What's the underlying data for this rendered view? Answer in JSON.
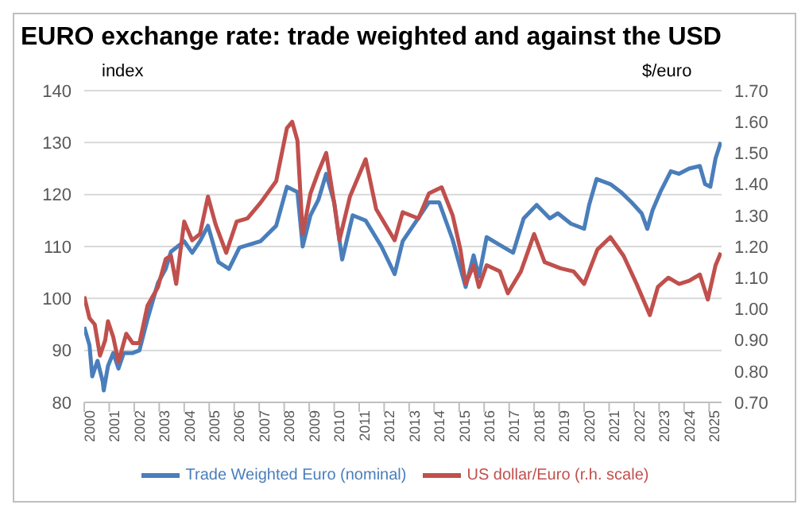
{
  "chart_data": {
    "type": "line",
    "title": "EURO exchange rate: trade weighted and against the USD",
    "ylabel": "index",
    "y2label": "$/euro",
    "xlim": [
      2000,
      2025.5
    ],
    "xticks": [
      2000,
      2001,
      2002,
      2003,
      2004,
      2005,
      2006,
      2007,
      2008,
      2009,
      2010,
      2011,
      2012,
      2013,
      2014,
      2015,
      2016,
      2017,
      2018,
      2019,
      2020,
      2021,
      2022,
      2023,
      2024,
      2025
    ],
    "ylim": [
      80,
      140
    ],
    "yticks": [
      80,
      90,
      100,
      110,
      120,
      130,
      140
    ],
    "y2lim": [
      0.7,
      1.7
    ],
    "y2ticks": [
      {
        "value": 0.7,
        "label": "0.70"
      },
      {
        "value": 0.8,
        "label": "0.80"
      },
      {
        "value": 0.9,
        "label": "0.90"
      },
      {
        "value": 1.0,
        "label": "1.00"
      },
      {
        "value": 1.1,
        "label": "1.10"
      },
      {
        "value": 1.2,
        "label": "1.20"
      },
      {
        "value": 1.3,
        "label": "1.30"
      },
      {
        "value": 1.4,
        "label": "1.40"
      },
      {
        "value": 1.5,
        "label": "1.50"
      },
      {
        "value": 1.6,
        "label": "1.60"
      },
      {
        "value": 1.7,
        "label": "1.70"
      }
    ],
    "grid": "y",
    "legend": "bottom",
    "marker": "none",
    "line_style": "solid",
    "series": [
      {
        "name": "Trade Weighted Euro (nominal)",
        "color": "#4a7ebb",
        "x": [
          2000.0,
          2000.21,
          2000.32,
          2000.53,
          2000.74,
          2000.78,
          2000.95,
          2001.16,
          2001.37,
          2001.58,
          2001.94,
          2002.21,
          2002.53,
          2002.95,
          2003.26,
          2003.47,
          2004.0,
          2004.32,
          2004.63,
          2004.95,
          2005.37,
          2005.79,
          2006.21,
          2007.05,
          2007.68,
          2008.11,
          2008.53,
          2008.74,
          2009.05,
          2009.37,
          2009.68,
          2010.0,
          2010.32,
          2010.74,
          2011.26,
          2011.89,
          2012.42,
          2012.74,
          2013.37,
          2013.79,
          2014.2,
          2014.74,
          2015.26,
          2015.58,
          2015.79,
          2016.1,
          2016.63,
          2017.16,
          2017.58,
          2018.1,
          2018.63,
          2018.95,
          2019.47,
          2020.0,
          2020.2,
          2020.5,
          2021.05,
          2021.47,
          2021.9,
          2022.3,
          2022.53,
          2022.74,
          2023.05,
          2023.47,
          2023.8,
          2024.2,
          2024.63,
          2024.84,
          2025.05,
          2025.26,
          2025.47
        ],
        "values": [
          94.5,
          91,
          85,
          88,
          84,
          82.3,
          87,
          89.5,
          86.5,
          89.5,
          89.5,
          90,
          96,
          103,
          105.7,
          109,
          111,
          108.8,
          111,
          114,
          107,
          105.7,
          109.8,
          111,
          114,
          121.5,
          120.5,
          110,
          116,
          119,
          124,
          118.5,
          107.5,
          116,
          115,
          110,
          104.7,
          111,
          115.5,
          118.5,
          118.5,
          111.3,
          102.2,
          108.3,
          104.2,
          111.8,
          110.3,
          108.8,
          115.4,
          118,
          115.4,
          116.4,
          114.4,
          113.4,
          118,
          123,
          122,
          120.5,
          118.5,
          116.4,
          113.4,
          117,
          120.5,
          124.5,
          124,
          125,
          125.5,
          122,
          121.5,
          127,
          130.1
        ]
      },
      {
        "name": "US dollar/Euro (r.h. scale)",
        "color": "#c0504d",
        "axis": "y2",
        "x": [
          2000.0,
          2000.21,
          2000.42,
          2000.63,
          2000.84,
          2000.95,
          2001.16,
          2001.37,
          2001.68,
          2001.94,
          2002.21,
          2002.53,
          2002.95,
          2003.26,
          2003.47,
          2003.68,
          2004.0,
          2004.32,
          2004.63,
          2004.95,
          2005.26,
          2005.68,
          2006.1,
          2006.53,
          2007.05,
          2007.68,
          2008.11,
          2008.32,
          2008.53,
          2008.74,
          2009.05,
          2009.37,
          2009.68,
          2010.0,
          2010.21,
          2010.63,
          2011.26,
          2011.68,
          2012.42,
          2012.74,
          2013.37,
          2013.79,
          2014.3,
          2014.74,
          2015.05,
          2015.26,
          2015.58,
          2015.79,
          2016.1,
          2016.63,
          2016.95,
          2017.47,
          2018.0,
          2018.42,
          2019.05,
          2019.58,
          2020.0,
          2020.53,
          2021.05,
          2021.58,
          2022.1,
          2022.63,
          2022.95,
          2023.37,
          2023.8,
          2024.2,
          2024.63,
          2024.95,
          2025.26,
          2025.47
        ],
        "values": [
          1.04,
          0.97,
          0.95,
          0.85,
          0.9,
          0.96,
          0.91,
          0.83,
          0.92,
          0.89,
          0.89,
          1.01,
          1.07,
          1.16,
          1.17,
          1.08,
          1.28,
          1.22,
          1.24,
          1.36,
          1.27,
          1.18,
          1.28,
          1.29,
          1.34,
          1.41,
          1.58,
          1.6,
          1.54,
          1.24,
          1.37,
          1.44,
          1.5,
          1.34,
          1.22,
          1.36,
          1.48,
          1.32,
          1.22,
          1.31,
          1.29,
          1.37,
          1.39,
          1.3,
          1.19,
          1.08,
          1.14,
          1.07,
          1.14,
          1.12,
          1.05,
          1.12,
          1.24,
          1.15,
          1.13,
          1.12,
          1.08,
          1.19,
          1.23,
          1.17,
          1.08,
          0.98,
          1.07,
          1.1,
          1.08,
          1.09,
          1.11,
          1.03,
          1.14,
          1.18
        ]
      }
    ]
  }
}
